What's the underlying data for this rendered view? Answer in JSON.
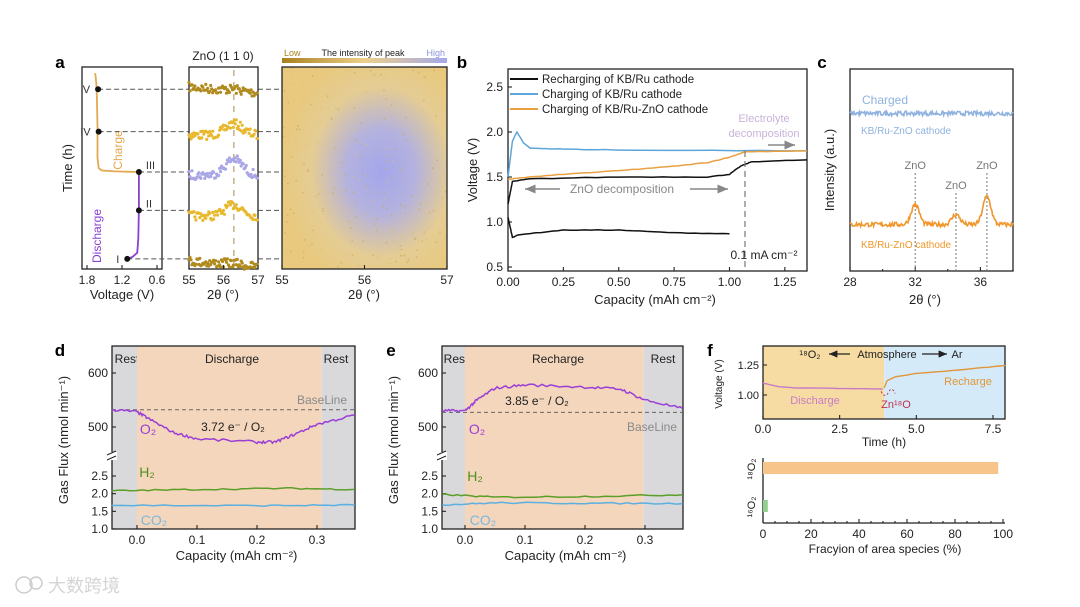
{
  "watermark": "大数跨境",
  "chart_data": [
    {
      "panel_label": "a",
      "type": "line",
      "voltage_plot": {
        "xlabel": "Voltage (V)",
        "ylabel": "Time (h)",
        "xlim": [
          1.89,
          0.51
        ],
        "xticks": [
          1.8,
          1.2,
          0.6
        ],
        "xtick_labels": [
          "1.8",
          "1.2",
          "0.6"
        ],
        "time_range_normalized": [
          0,
          1
        ],
        "series": [
          {
            "name": "Discharge",
            "color": "#8b3fd0",
            "points": [
              [
                1.11,
                0.05
              ],
              [
                1.02,
                0.06
              ],
              [
                0.94,
                0.08
              ],
              [
                0.92,
                0.15
              ],
              [
                0.91,
                0.3
              ],
              [
                0.91,
                0.48
              ]
            ]
          },
          {
            "name": "Charge",
            "color": "#e3a850",
            "points": [
              [
                0.91,
                0.48
              ],
              [
                1.3,
                0.483
              ],
              [
                1.55,
                0.488
              ],
              [
                1.6,
                0.5
              ],
              [
                1.62,
                0.55
              ],
              [
                1.62,
                0.7
              ],
              [
                1.63,
                0.85
              ],
              [
                1.64,
                0.92
              ],
              [
                1.66,
                0.97
              ]
            ]
          }
        ],
        "markers": [
          {
            "label": "I",
            "voltage": 1.11,
            "time": 0.05
          },
          {
            "label": "II",
            "voltage": 0.91,
            "time": 0.29
          },
          {
            "label": "III",
            "voltage": 0.91,
            "time": 0.48
          },
          {
            "label": "IV",
            "voltage": 1.6,
            "time": 0.68
          },
          {
            "label": "V",
            "voltage": 1.61,
            "time": 0.89
          }
        ],
        "annotations": {
          "charge": "Charge",
          "discharge": "Discharge"
        }
      },
      "xrd_stripes": {
        "title": "ZnO (1 1 0)",
        "xlabel": "2θ (°)",
        "xlim": [
          55,
          57
        ],
        "xticks": [
          "55",
          "56",
          "57"
        ],
        "peak_position": 56.3,
        "traces": [
          {
            "state": "V",
            "color": "#b08a1c",
            "peak_height": 0.1
          },
          {
            "state": "IV",
            "color": "#e8b92e",
            "peak_height": 0.7
          },
          {
            "state": "III",
            "color": "#a9a6e6",
            "peak_height": 1.0
          },
          {
            "state": "II",
            "color": "#e8b92e",
            "peak_height": 0.7
          },
          {
            "state": "I",
            "color": "#b08a1c",
            "peak_height": 0.1
          }
        ]
      },
      "heatmap": {
        "xlabel": "2θ (°)",
        "xlim": [
          55,
          57
        ],
        "xticks": [
          "55",
          "56",
          "57"
        ],
        "peak_center": 56.4,
        "colorbar": {
          "low": "Low",
          "title": "The intensity of peak",
          "high": "High",
          "low_color": "#a8801e",
          "mid_color": "#ecd08a",
          "high_color": "#a6a8ea"
        }
      }
    },
    {
      "panel_label": "b",
      "type": "line",
      "xlabel": "Capacity (mAh cm⁻²)",
      "ylabel": "Voltage (V)",
      "xlim": [
        0,
        1.35
      ],
      "ylim": [
        0.45,
        2.7
      ],
      "xticks": [
        "0.00",
        "0.25",
        "0.50",
        "0.75",
        "1.00",
        "1.25"
      ],
      "yticks": [
        "0.5",
        "1.0",
        "1.5",
        "2.0",
        "2.5"
      ],
      "series": [
        {
          "name": "Recharging of KB/Ru cathode",
          "color": "#111111",
          "segments": [
            [
              [
                0,
                1.05
              ],
              [
                0.02,
                0.83
              ],
              [
                0.05,
                0.86
              ],
              [
                0.25,
                0.91
              ],
              [
                0.5,
                0.91
              ],
              [
                0.75,
                0.88
              ],
              [
                1.0,
                0.87
              ]
            ],
            [
              [
                0,
                1.2
              ],
              [
                0.02,
                1.45
              ],
              [
                0.1,
                1.48
              ],
              [
                0.5,
                1.5
              ],
              [
                0.9,
                1.5
              ],
              [
                1.0,
                1.53
              ],
              [
                1.05,
                1.62
              ],
              [
                1.1,
                1.67
              ],
              [
                1.35,
                1.69
              ]
            ]
          ]
        },
        {
          "name": "Charging of KB/Ru cathode",
          "color": "#5ea6da",
          "segments": [
            [
              [
                0,
                1.5
              ],
              [
                0.02,
                1.9
              ],
              [
                0.04,
                2.0
              ],
              [
                0.07,
                1.88
              ],
              [
                0.1,
                1.82
              ],
              [
                0.25,
                1.81
              ],
              [
                0.5,
                1.8
              ],
              [
                1.35,
                1.79
              ]
            ]
          ]
        },
        {
          "name": "Charging of KB/Ru-ZnO cathode",
          "color": "#e8a040",
          "segments": [
            [
              [
                0,
                1.47
              ],
              [
                0.05,
                1.49
              ],
              [
                0.25,
                1.53
              ],
              [
                0.5,
                1.57
              ],
              [
                0.75,
                1.62
              ],
              [
                0.9,
                1.66
              ],
              [
                1.0,
                1.72
              ],
              [
                1.07,
                1.78
              ],
              [
                1.35,
                1.79
              ]
            ]
          ]
        }
      ],
      "annotations": {
        "zno": "ZnO decomposition",
        "electrolyte_1": "Electrolyte",
        "electrolyte_2": "decomposition",
        "current": "0.1 mA cm⁻²",
        "marker_capacity": 1.07
      }
    },
    {
      "panel_label": "c",
      "type": "line",
      "xlabel": "2θ (°)",
      "ylabel": "Intensity (a.u.)",
      "xlim": [
        28,
        38
      ],
      "xticks": [
        "28",
        "32",
        "36"
      ],
      "ylim": [
        0,
        10
      ],
      "series": [
        {
          "name": "Charged KB/Ru-ZnO cathode",
          "color": "#8fb2e0",
          "baseline": 7.8,
          "peaks": []
        },
        {
          "name": "KB/Ru-ZnO cathode",
          "color": "#f0962a",
          "baseline": 2.3,
          "peaks": [
            [
              32.0,
              1.0
            ],
            [
              34.5,
              0.5
            ],
            [
              36.4,
              1.4
            ]
          ]
        }
      ],
      "annotations": {
        "charged": "Charged",
        "charged_sub": "KB/Ru-ZnO cathode",
        "pristine": "KB/Ru-ZnO cathode",
        "peak_label": "ZnO",
        "peak_positions": [
          32.0,
          34.5,
          36.4
        ]
      }
    },
    {
      "panel_label": "d",
      "type": "line",
      "xlabel": "Capacity (mAh cm⁻²)",
      "ylabel": "Gas Flux (nmol min⁻¹)",
      "xlim": [
        -0.042,
        0.363
      ],
      "upper_yticks": [
        "600",
        "500"
      ],
      "lower_yticks": [
        "1.0",
        "1.5",
        "2.0",
        "2.5"
      ],
      "xticks": [
        "0.0",
        "0.1",
        "0.2",
        "0.3"
      ],
      "regions": [
        {
          "label": "Rest",
          "range": [
            -0.042,
            0
          ]
        },
        {
          "label": "Discharge",
          "range": [
            0,
            0.308
          ]
        },
        {
          "label": "Rest",
          "range": [
            0.308,
            0.363
          ]
        }
      ],
      "baseline": {
        "label": "BaseLine",
        "value": 532
      },
      "series": [
        {
          "name": "O₂",
          "color": "#9a3fd6",
          "points": [
            [
              -0.042,
              532
            ],
            [
              0,
              528
            ],
            [
              0.02,
              515
            ],
            [
              0.06,
              490
            ],
            [
              0.1,
              478
            ],
            [
              0.2,
              472
            ],
            [
              0.23,
              472
            ],
            [
              0.26,
              485
            ],
            [
              0.3,
              505
            ],
            [
              0.363,
              522
            ]
          ]
        },
        {
          "name": "H₂",
          "color": "#5c9e2a",
          "points": [
            [
              -0.042,
              2.08
            ],
            [
              0.1,
              2.12
            ],
            [
              0.25,
              2.15
            ],
            [
              0.363,
              2.12
            ]
          ]
        },
        {
          "name": "CO₂",
          "color": "#5cb0e0",
          "points": [
            [
              -0.042,
              1.67
            ],
            [
              0.2,
              1.66
            ],
            [
              0.363,
              1.68
            ]
          ]
        }
      ],
      "annotation": "3.72 e⁻ / O₂"
    },
    {
      "panel_label": "e",
      "type": "line",
      "xlabel": "Capacity (mAh cm⁻²)",
      "ylabel": "Gas Flux (nmol min⁻¹)",
      "xlim": [
        -0.038,
        0.363
      ],
      "upper_yticks": [
        "600",
        "500"
      ],
      "lower_yticks": [
        "1.0",
        "1.5",
        "2.0",
        "2.5"
      ],
      "xticks": [
        "0.0",
        "0.1",
        "0.2",
        "0.3"
      ],
      "regions": [
        {
          "label": "Rest",
          "range": [
            -0.038,
            0
          ]
        },
        {
          "label": "Recharge",
          "range": [
            0,
            0.298
          ]
        },
        {
          "label": "Rest",
          "range": [
            0.298,
            0.363
          ]
        }
      ],
      "baseline": {
        "label": "BaseLine",
        "value": 527
      },
      "series": [
        {
          "name": "O₂",
          "color": "#9a3fd6",
          "points": [
            [
              -0.038,
              530
            ],
            [
              0,
              530
            ],
            [
              0.02,
              550
            ],
            [
              0.05,
              572
            ],
            [
              0.1,
              578
            ],
            [
              0.2,
              574
            ],
            [
              0.26,
              570
            ],
            [
              0.3,
              550
            ],
            [
              0.363,
              534
            ]
          ]
        },
        {
          "name": "H₂",
          "color": "#5c9e2a",
          "points": [
            [
              -0.038,
              1.98
            ],
            [
              0.05,
              1.9
            ],
            [
              0.2,
              1.92
            ],
            [
              0.363,
              1.97
            ]
          ]
        },
        {
          "name": "CO₂",
          "color": "#5cb0e0",
          "points": [
            [
              -0.038,
              1.68
            ],
            [
              0.05,
              1.74
            ],
            [
              0.2,
              1.73
            ],
            [
              0.363,
              1.72
            ]
          ]
        }
      ],
      "annotation": "3.85 e⁻ / O₂"
    },
    {
      "panel_label": "f",
      "type": "line",
      "top": {
        "xlabel": "Time (h)",
        "ylabel": "Voltage (V)",
        "xlim": [
          0,
          7.9
        ],
        "ylim": [
          0.82,
          1.38
        ],
        "xticks": [
          "0.0",
          "2.5",
          "5.0",
          "7.5"
        ],
        "yticks": [
          "1.00",
          "1.25"
        ],
        "regions": [
          {
            "atmosphere": "¹⁸O₂",
            "range": [
              0,
              3.95
            ],
            "color": "#f6dca2"
          },
          {
            "atmosphere": "Ar",
            "range": [
              3.95,
              7.9
            ],
            "color": "#d4eaf8"
          }
        ],
        "series": [
          {
            "name": "Discharge",
            "color": "#c77bc7",
            "points": [
              [
                0,
                1.1
              ],
              [
                0.5,
                1.07
              ],
              [
                1,
                1.06
              ],
              [
                3.9,
                1.05
              ]
            ]
          },
          {
            "name": "Recharge",
            "color": "#e0963a",
            "points": [
              [
                3.95,
                1.06
              ],
              [
                4.05,
                1.12
              ],
              [
                4.3,
                1.15
              ],
              [
                5,
                1.18
              ],
              [
                6,
                1.2
              ],
              [
                7.9,
                1.245
              ]
            ]
          }
        ],
        "labels": {
          "o18": "¹⁸O₂",
          "atmosphere": "Atmosphere",
          "ar": "Ar",
          "discharge": "Discharge",
          "recharge": "Recharge",
          "zno": "Zn¹⁸O"
        }
      },
      "bottom": {
        "type": "bar",
        "xlabel": "Fracyion of area species (%)",
        "xlim": [
          0,
          100
        ],
        "xticks": [
          "0",
          "20",
          "40",
          "60",
          "80",
          "100"
        ],
        "categories": [
          "¹⁸O₂",
          "¹⁶O₂"
        ],
        "values": [
          98,
          2
        ],
        "colors": [
          "#f7c48a",
          "#8fd08f"
        ]
      }
    }
  ]
}
